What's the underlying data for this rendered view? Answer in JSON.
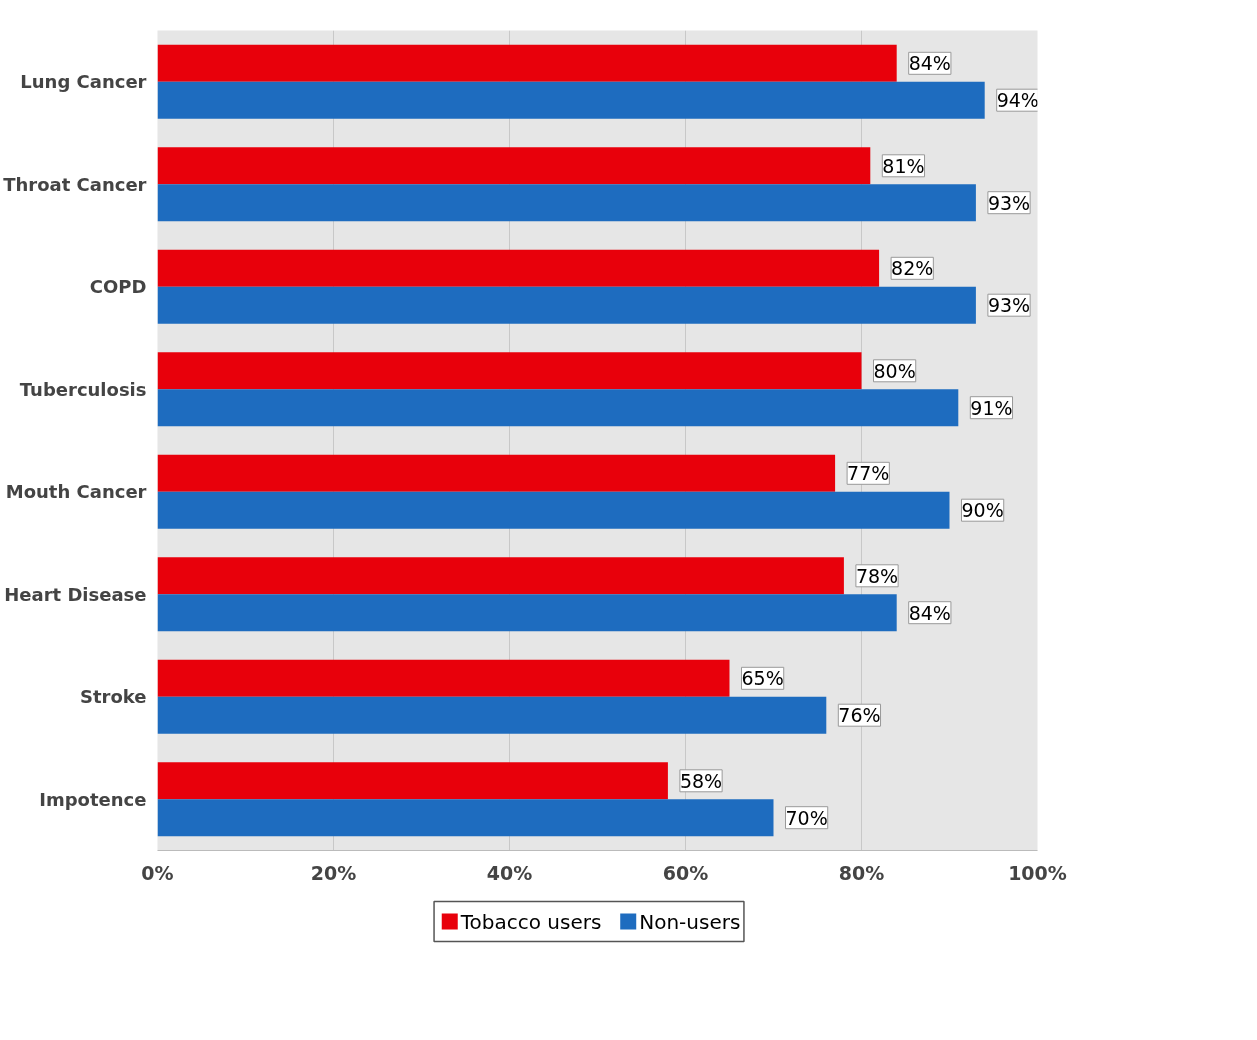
{
  "chart_data": {
    "type": "bar",
    "orientation": "horizontal",
    "categories": [
      "Lung Cancer",
      "Throat Cancer",
      "COPD",
      "Tuberculosis",
      "Mouth Cancer",
      "Heart Disease",
      "Stroke",
      "Impotence"
    ],
    "series": [
      {
        "name": "Tobacco users",
        "color": "#e8000b",
        "values": [
          84,
          81,
          82,
          80,
          77,
          78,
          65,
          58
        ],
        "value_labels": [
          "84%",
          "81%",
          "82%",
          "80%",
          "77%",
          "78%",
          "65%",
          "58%"
        ]
      },
      {
        "name": "Non-users",
        "color": "#1e6cbf",
        "values": [
          94,
          93,
          93,
          91,
          90,
          84,
          76,
          70
        ],
        "value_labels": [
          "94%",
          "93%",
          "93%",
          "91%",
          "90%",
          "84%",
          "76%",
          "70%"
        ]
      }
    ],
    "xlim": [
      0,
      100
    ],
    "xticks": [
      {
        "value": 0,
        "label": "0%"
      },
      {
        "value": 20,
        "label": "20%"
      },
      {
        "value": 40,
        "label": "40%"
      },
      {
        "value": 60,
        "label": "60%"
      },
      {
        "value": 80,
        "label": "80%"
      },
      {
        "value": 100,
        "label": "100%"
      }
    ],
    "grid": "x",
    "legend": "bottom"
  }
}
